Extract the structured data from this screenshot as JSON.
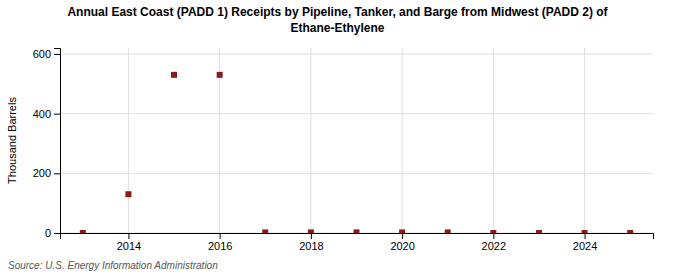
{
  "chart_data": {
    "type": "scatter",
    "title": "Annual East Coast (PADD 1) Receipts by Pipeline, Tanker, and Barge from Midwest (PADD 2) of\nEthane-Ethylene",
    "y_label": "Thousand Barrels",
    "source": "Source: U.S. Energy Information Administration",
    "x": [
      2013,
      2014,
      2015,
      2016,
      2017,
      2018,
      2019,
      2020,
      2021,
      2022,
      2023,
      2024,
      2025
    ],
    "values": [
      0,
      130,
      530,
      530,
      2,
      2,
      2,
      2,
      2,
      0,
      0,
      0,
      0
    ],
    "color": "#8b1a1a",
    "marker": "square",
    "xlim": [
      2012.5,
      2025.5
    ],
    "xticks": [
      2014,
      2016,
      2018,
      2020,
      2022,
      2024
    ],
    "ylim": [
      0,
      620
    ],
    "yticks": [
      0,
      200,
      400,
      600
    ],
    "grid": true
  }
}
